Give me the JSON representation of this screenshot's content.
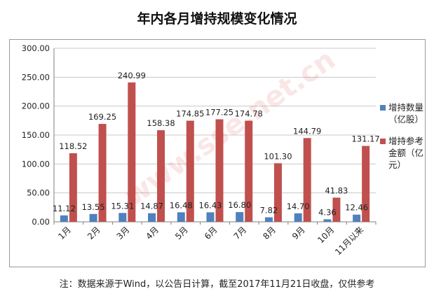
{
  "title": "年内各月增持规模变化情况",
  "note": "注：数据来源于Wind，以公告日计算，截至2017年11月21日收盘，仅供参考",
  "watermark": "www.sse.net.cn",
  "colors": {
    "series1": "#4f81bd",
    "series2": "#c0504d",
    "grid": "#c8c8c8",
    "axis": "#7f7f7f"
  },
  "chart_data": {
    "type": "bar",
    "title": "年内各月增持规模变化情况",
    "categories": [
      "1月",
      "2月",
      "3月",
      "4月",
      "5月",
      "6月",
      "7月",
      "8月",
      "9月",
      "10月",
      "11月以来"
    ],
    "series": [
      {
        "name": "增持数量（亿股）",
        "values": [
          11.12,
          13.55,
          15.31,
          14.87,
          16.48,
          16.43,
          16.8,
          7.82,
          14.7,
          4.36,
          12.46
        ],
        "labels": [
          "11.12",
          "13.55",
          "15.31",
          "14.87",
          "16.48",
          "16.43",
          "16.80",
          "7.82",
          "14.70",
          "4.36",
          "12.46"
        ]
      },
      {
        "name": "增持参考金额（亿元）",
        "values": [
          118.52,
          169.25,
          240.99,
          158.38,
          174.85,
          177.25,
          174.78,
          101.3,
          144.79,
          41.83,
          131.17
        ],
        "labels": [
          "118.52",
          "169.25",
          "240.99",
          "158.38",
          "174.85",
          "177.25",
          "174.78",
          "101.30",
          "144.79",
          "41.83",
          "131.17"
        ]
      }
    ],
    "yticks": [
      "0.00",
      "50.00",
      "100.00",
      "150.00",
      "200.00",
      "250.00",
      "300.00"
    ],
    "ylim": [
      0,
      300
    ],
    "grid": true,
    "legend_position": "right"
  }
}
